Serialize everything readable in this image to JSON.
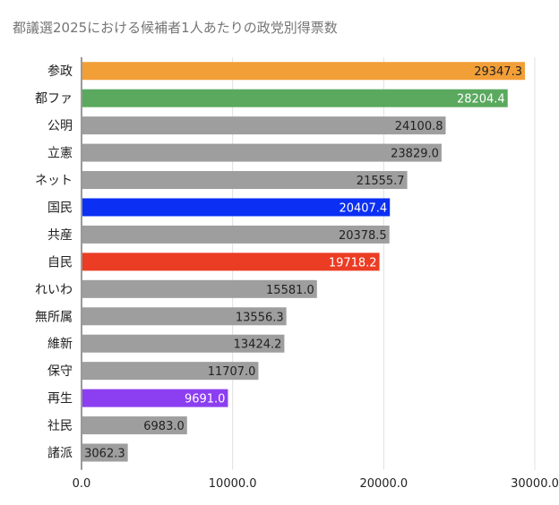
{
  "chart_data": {
    "type": "bar",
    "orientation": "horizontal",
    "title": "都議選2025における候補者1人あたりの政党別得票数",
    "xlabel": "",
    "ylabel": "",
    "categories": [
      "参政",
      "都ファ",
      "公明",
      "立憲",
      "ネット",
      "国民",
      "共産",
      "自民",
      "れいわ",
      "無所属",
      "維新",
      "保守",
      "再生",
      "社民",
      "諸派"
    ],
    "values": [
      29347.3,
      28204.4,
      24100.8,
      23829.0,
      21555.7,
      20407.4,
      20378.5,
      19718.2,
      15581.0,
      13556.3,
      13424.2,
      11707.0,
      9691.0,
      6983.0,
      3062.3
    ],
    "value_labels": [
      "29347.3",
      "28204.4",
      "24100.8",
      "23829.0",
      "21555.7",
      "20407.4",
      "20378.5",
      "19718.2",
      "15581.0",
      "13556.3",
      "13424.2",
      "11707.0",
      "9691.0",
      "6983.0",
      "3062.3"
    ],
    "bar_colors": [
      "#f29f38",
      "#5aa95e",
      "#9e9e9e",
      "#9e9e9e",
      "#9e9e9e",
      "#0b2ff3",
      "#9e9e9e",
      "#eb3c24",
      "#9e9e9e",
      "#9e9e9e",
      "#9e9e9e",
      "#9e9e9e",
      "#8c3ff0",
      "#9e9e9e",
      "#9e9e9e"
    ],
    "label_colors": [
      "#222222",
      "#ffffff",
      "#222222",
      "#222222",
      "#222222",
      "#ffffff",
      "#222222",
      "#ffffff",
      "#222222",
      "#222222",
      "#222222",
      "#222222",
      "#ffffff",
      "#222222",
      "#222222"
    ],
    "xlim": [
      0,
      30000
    ],
    "x_ticks": [
      0,
      10000,
      20000,
      30000
    ],
    "x_tick_labels": [
      "0.0",
      "10000.0",
      "20000.0",
      "30000.0"
    ],
    "grid": true,
    "legend": "none"
  }
}
